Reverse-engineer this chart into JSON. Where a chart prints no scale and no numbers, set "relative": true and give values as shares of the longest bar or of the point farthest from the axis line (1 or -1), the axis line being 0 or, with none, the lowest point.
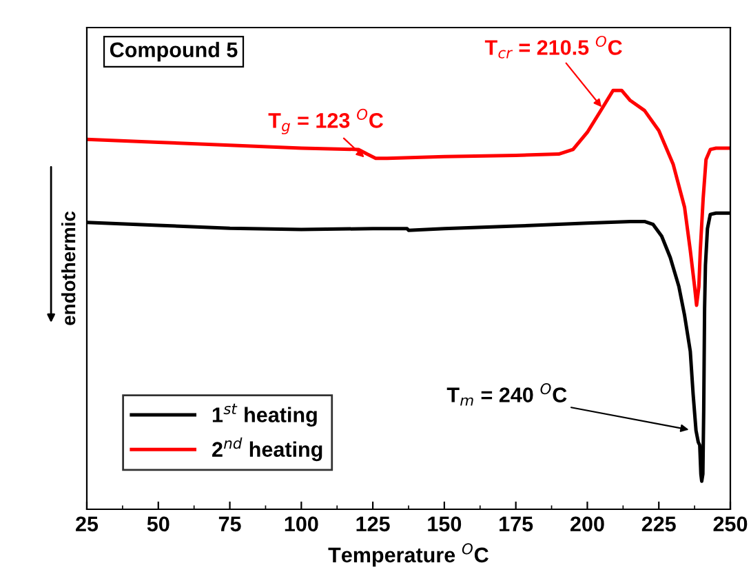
{
  "chart_data": {
    "type": "line",
    "relative": true,
    "xlabel": "Temperature $^{O}$C",
    "ylabel": "endothermic",
    "xlim": [
      25,
      250
    ],
    "xticks": [
      25,
      50,
      75,
      100,
      125,
      150,
      175,
      200,
      225,
      250
    ],
    "grid": false,
    "legend": "bottom left",
    "marker": "none",
    "line_style": "solid",
    "annotations": [
      "Compound 5",
      {
        "text": "T$_{g}$ = 123 $^{O}$C",
        "x": 122,
        "y": 0.84
      },
      {
        "text": "T$_{cr}$ = 210.5 $^{O}$C",
        "x": 205,
        "y": 0.96
      },
      {
        "text": "T$_{m}$ = 240 $^{O}$C",
        "x": 235.5,
        "y": 0.19
      }
    ],
    "series": [
      {
        "name": "1$^{st}$ heating",
        "color": "#000000",
        "x": [
          25,
          50,
          75,
          100,
          125,
          137,
          137.5,
          150,
          175,
          200,
          215,
          220,
          223,
          226,
          229,
          232,
          234,
          236,
          237,
          238,
          238.8,
          239.3,
          239.7,
          240,
          240.4,
          240.7,
          241,
          241.3,
          242,
          243,
          245,
          250
        ],
        "values": [
          0.685,
          0.678,
          0.671,
          0.668,
          0.67,
          0.67,
          0.666,
          0.67,
          0.676,
          0.683,
          0.687,
          0.687,
          0.68,
          0.652,
          0.601,
          0.532,
          0.463,
          0.377,
          0.274,
          0.188,
          0.16,
          0.153,
          0.084,
          0.067,
          0.084,
          0.239,
          0.48,
          0.583,
          0.67,
          0.704,
          0.707,
          0.707
        ]
      },
      {
        "name": "2$^{nd}$ heating",
        "color": "#ff0000",
        "x": [
          25,
          50,
          75,
          100,
          120,
          123,
          126,
          130,
          150,
          175,
          190,
          195,
          200,
          205,
          209,
          212,
          215,
          220,
          225,
          230,
          234,
          236,
          237.5,
          238.2,
          239,
          239.5,
          240.5,
          241.5,
          243,
          245,
          250
        ],
        "values": [
          0.883,
          0.876,
          0.869,
          0.862,
          0.859,
          0.848,
          0.838,
          0.838,
          0.842,
          0.845,
          0.848,
          0.859,
          0.9,
          0.955,
          1.0,
          1.0,
          0.976,
          0.952,
          0.904,
          0.824,
          0.721,
          0.618,
          0.532,
          0.487,
          0.532,
          0.618,
          0.742,
          0.835,
          0.859,
          0.862,
          0.862
        ]
      }
    ]
  }
}
